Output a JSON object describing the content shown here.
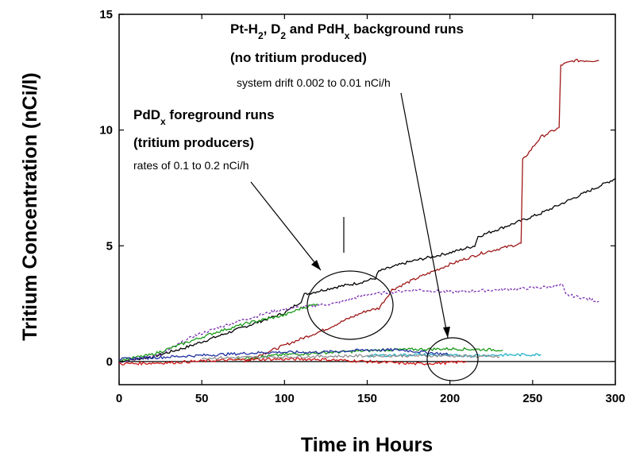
{
  "chart_data": {
    "type": "line",
    "xlabel": "Time in Hours",
    "ylabel": "Tritium Concentration (nCi/l)",
    "xlim": [
      0,
      300
    ],
    "ylim": [
      -1,
      15
    ],
    "x_ticks": [
      "0",
      "50",
      "100",
      "150",
      "200",
      "250",
      "300"
    ],
    "y_ticks": [
      "0",
      "5",
      "10",
      "15"
    ],
    "grid": false,
    "legend": "none",
    "colors": {
      "black": "#000000",
      "darkred": "#a01818",
      "purple": "#7a30b0",
      "green": "#1a9a1a",
      "blue": "#2030a0",
      "red": "#d01818",
      "cyan": "#20b0c8",
      "gray": "#909090"
    },
    "series": [
      {
        "color": "black",
        "x": [
          0,
          20,
          40,
          60,
          80,
          100,
          110,
          112,
          130,
          145,
          155,
          157,
          175,
          200,
          215,
          217,
          240,
          255,
          270,
          285,
          300
        ],
        "y": [
          0,
          0.2,
          0.6,
          1.1,
          1.6,
          2.1,
          2.6,
          2.9,
          3.2,
          3.4,
          3.6,
          3.9,
          4.3,
          4.7,
          5.0,
          5.4,
          6.0,
          6.4,
          6.9,
          7.4,
          7.9
        ]
      },
      {
        "color": "darkred",
        "x": [
          75,
          100,
          125,
          140,
          150,
          157,
          165,
          180,
          200,
          220,
          243,
          244,
          255,
          266,
          267,
          275,
          290
        ],
        "y": [
          0,
          0.7,
          1.4,
          1.9,
          2.2,
          2.3,
          3.1,
          3.6,
          4.2,
          4.7,
          5.1,
          8.7,
          9.7,
          10.1,
          12.8,
          13.0,
          13.0
        ]
      },
      {
        "color": "purple",
        "x": [
          0,
          25,
          45,
          70,
          95,
          115,
          130,
          150,
          180,
          200,
          230,
          255,
          268,
          270,
          290
        ],
        "y": [
          0,
          0.3,
          1.1,
          1.7,
          2.2,
          2.4,
          2.5,
          2.9,
          3.1,
          3.0,
          3.1,
          3.2,
          3.3,
          2.9,
          2.6
        ]
      },
      {
        "color": "green",
        "x": [
          0,
          20,
          40,
          60,
          80,
          100,
          110,
          120
        ],
        "y": [
          0.05,
          0.3,
          0.8,
          1.3,
          1.7,
          2.0,
          2.3,
          2.5
        ]
      },
      {
        "color": "green",
        "x": [
          70,
          100,
          130,
          160,
          200,
          232
        ],
        "y": [
          0.1,
          0.3,
          0.4,
          0.5,
          0.55,
          0.5
        ]
      },
      {
        "color": "blue",
        "x": [
          0,
          30,
          60,
          90,
          120,
          150,
          170,
          200
        ],
        "y": [
          0.1,
          0.2,
          0.3,
          0.4,
          0.4,
          0.5,
          0.5,
          0.3
        ]
      },
      {
        "color": "red",
        "x": [
          0,
          30,
          60,
          90,
          120,
          150,
          180,
          200,
          210
        ],
        "y": [
          -0.1,
          -0.05,
          0.05,
          0.1,
          0.1,
          0.0,
          -0.1,
          -0.05,
          0.0
        ]
      },
      {
        "color": "cyan",
        "x": [
          150,
          180,
          200,
          230,
          255
        ],
        "y": [
          0.25,
          0.3,
          0.25,
          0.28,
          0.3
        ]
      },
      {
        "color": "gray",
        "x": [
          50,
          100,
          150,
          200,
          230
        ],
        "y": [
          0.15,
          0.2,
          0.25,
          0.25,
          0.2
        ]
      }
    ],
    "annotations": [
      {
        "id": "bg_title",
        "lines": [
          "Pt-H",
          "2",
          ", D",
          "2",
          " and PdH",
          "x",
          " background runs"
        ]
      },
      {
        "id": "bg_sub",
        "text": "(no tritium produced)"
      },
      {
        "id": "bg_drift",
        "text": "system drift 0.002 to 0.01 nCi/h"
      },
      {
        "id": "fg_title",
        "lines": [
          "PdD",
          "x",
          " foreground runs"
        ]
      },
      {
        "id": "fg_sub",
        "text": "(tritium producers)"
      },
      {
        "id": "fg_rates",
        "text": "rates of  0.1 to 0.2 nCi/h"
      }
    ]
  }
}
